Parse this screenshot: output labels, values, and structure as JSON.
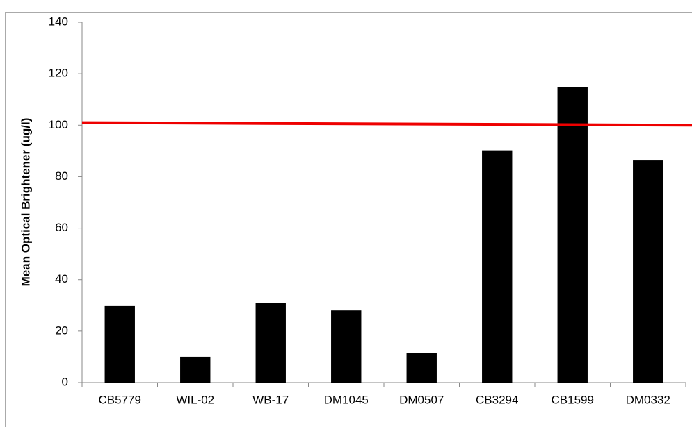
{
  "chart_data": {
    "type": "bar",
    "y_label": "Mean Optical Brightener (ug/l)",
    "categories": [
      "CB5779",
      "WIL-02",
      "WB-17",
      "DM1045",
      "DM0507",
      "CB3294",
      "CB1599",
      "DM0332"
    ],
    "values": [
      29.7,
      10,
      30.8,
      28,
      11.5,
      90.2,
      114.8,
      86.3
    ],
    "color": "#000000",
    "ylim": [
      0,
      140
    ],
    "yticks": [
      0,
      20,
      40,
      60,
      80,
      100,
      120,
      140
    ],
    "grid": false,
    "reference_line": {
      "color": "#ee0000",
      "y_start": 101,
      "y_end": 100
    }
  }
}
